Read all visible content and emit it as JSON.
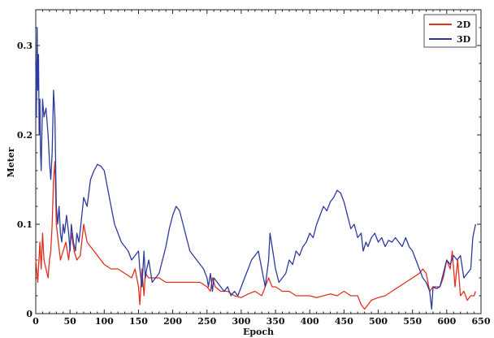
{
  "chart_data": {
    "type": "line",
    "title": "",
    "xlabel": "Epoch",
    "ylabel": "Meter",
    "xlim": [
      0,
      650
    ],
    "ylim": [
      0,
      0.34
    ],
    "x_ticks": [
      0,
      50,
      100,
      150,
      200,
      250,
      300,
      350,
      400,
      450,
      500,
      550,
      600,
      650
    ],
    "y_ticks": [
      0,
      0.1,
      0.2,
      0.3
    ],
    "x_tick_labels": [
      "0",
      "50",
      "100",
      "150",
      "200",
      "250",
      "300",
      "350",
      "400",
      "450",
      "500",
      "550",
      "600",
      "650"
    ],
    "y_tick_labels": [
      "0",
      "0.1",
      "0.2",
      "0.3"
    ],
    "grid": false,
    "legend_position": "top-right",
    "series": [
      {
        "name": "2D",
        "color": "#e0301e",
        "x": [
          0,
          3,
          6,
          8,
          10,
          12,
          15,
          18,
          20,
          22,
          24,
          26,
          28,
          30,
          33,
          36,
          40,
          44,
          48,
          52,
          56,
          60,
          65,
          70,
          75,
          80,
          85,
          90,
          95,
          100,
          110,
          120,
          130,
          140,
          145,
          150,
          152,
          155,
          158,
          160,
          165,
          170,
          180,
          190,
          200,
          210,
          220,
          230,
          240,
          250,
          255,
          258,
          262,
          270,
          280,
          290,
          300,
          310,
          320,
          330,
          340,
          345,
          350,
          360,
          370,
          380,
          390,
          400,
          410,
          420,
          430,
          440,
          450,
          460,
          470,
          475,
          480,
          490,
          500,
          510,
          520,
          530,
          540,
          550,
          560,
          565,
          570,
          575,
          580,
          585,
          590,
          595,
          600,
          605,
          608,
          612,
          616,
          620,
          625,
          630,
          635,
          640,
          642
        ],
        "values": [
          0.06,
          0.035,
          0.08,
          0.05,
          0.09,
          0.06,
          0.05,
          0.04,
          0.06,
          0.07,
          0.1,
          0.15,
          0.17,
          0.1,
          0.08,
          0.06,
          0.07,
          0.08,
          0.06,
          0.09,
          0.07,
          0.06,
          0.065,
          0.1,
          0.08,
          0.075,
          0.07,
          0.065,
          0.06,
          0.055,
          0.05,
          0.05,
          0.045,
          0.04,
          0.05,
          0.03,
          0.01,
          0.05,
          0.02,
          0.045,
          0.04,
          0.04,
          0.04,
          0.035,
          0.035,
          0.035,
          0.035,
          0.035,
          0.035,
          0.03,
          0.025,
          0.04,
          0.03,
          0.025,
          0.025,
          0.02,
          0.018,
          0.022,
          0.025,
          0.02,
          0.04,
          0.03,
          0.03,
          0.025,
          0.025,
          0.02,
          0.02,
          0.02,
          0.018,
          0.02,
          0.022,
          0.02,
          0.025,
          0.02,
          0.02,
          0.01,
          0.005,
          0.015,
          0.018,
          0.02,
          0.025,
          0.03,
          0.035,
          0.04,
          0.045,
          0.05,
          0.045,
          0.025,
          0.03,
          0.03,
          0.03,
          0.04,
          0.06,
          0.05,
          0.07,
          0.03,
          0.06,
          0.02,
          0.025,
          0.015,
          0.02,
          0.02,
          0.025
        ]
      },
      {
        "name": "3D",
        "color": "#2e3a9e",
        "x": [
          0,
          1,
          2,
          3,
          4,
          5,
          6,
          7,
          8,
          10,
          12,
          15,
          18,
          20,
          22,
          24,
          26,
          28,
          30,
          32,
          34,
          36,
          38,
          40,
          42,
          45,
          48,
          50,
          52,
          55,
          58,
          60,
          63,
          66,
          70,
          75,
          80,
          85,
          90,
          95,
          100,
          105,
          110,
          115,
          120,
          125,
          130,
          135,
          140,
          145,
          150,
          152,
          155,
          158,
          160,
          162,
          165,
          170,
          175,
          180,
          185,
          190,
          195,
          200,
          205,
          210,
          215,
          220,
          225,
          230,
          235,
          240,
          245,
          250,
          252,
          255,
          258,
          260,
          265,
          270,
          275,
          280,
          285,
          290,
          295,
          300,
          305,
          310,
          315,
          320,
          325,
          330,
          335,
          340,
          342,
          345,
          350,
          355,
          360,
          365,
          370,
          375,
          380,
          385,
          390,
          395,
          400,
          405,
          410,
          415,
          420,
          425,
          430,
          435,
          440,
          445,
          450,
          455,
          460,
          465,
          470,
          475,
          478,
          482,
          485,
          490,
          495,
          500,
          505,
          510,
          515,
          520,
          525,
          530,
          535,
          540,
          545,
          550,
          555,
          560,
          565,
          570,
          575,
          578,
          580,
          585,
          590,
          595,
          600,
          605,
          610,
          615,
          620,
          625,
          630,
          635,
          638,
          642
        ],
        "values": [
          0.28,
          0.22,
          0.32,
          0.25,
          0.29,
          0.2,
          0.24,
          0.18,
          0.16,
          0.24,
          0.22,
          0.23,
          0.2,
          0.17,
          0.15,
          0.18,
          0.25,
          0.22,
          0.12,
          0.1,
          0.12,
          0.09,
          0.08,
          0.1,
          0.09,
          0.11,
          0.09,
          0.07,
          0.1,
          0.08,
          0.07,
          0.09,
          0.08,
          0.1,
          0.13,
          0.12,
          0.15,
          0.16,
          0.167,
          0.165,
          0.16,
          0.14,
          0.12,
          0.1,
          0.09,
          0.08,
          0.075,
          0.07,
          0.06,
          0.065,
          0.07,
          0.05,
          0.03,
          0.07,
          0.04,
          0.05,
          0.06,
          0.035,
          0.04,
          0.045,
          0.06,
          0.075,
          0.095,
          0.11,
          0.12,
          0.115,
          0.1,
          0.085,
          0.07,
          0.065,
          0.06,
          0.055,
          0.05,
          0.04,
          0.03,
          0.045,
          0.025,
          0.04,
          0.035,
          0.03,
          0.025,
          0.03,
          0.02,
          0.025,
          0.02,
          0.03,
          0.04,
          0.05,
          0.06,
          0.065,
          0.07,
          0.05,
          0.03,
          0.06,
          0.09,
          0.075,
          0.05,
          0.035,
          0.04,
          0.045,
          0.06,
          0.055,
          0.07,
          0.065,
          0.075,
          0.08,
          0.09,
          0.085,
          0.1,
          0.11,
          0.12,
          0.115,
          0.125,
          0.13,
          0.138,
          0.135,
          0.125,
          0.11,
          0.095,
          0.1,
          0.085,
          0.09,
          0.07,
          0.08,
          0.075,
          0.085,
          0.09,
          0.08,
          0.085,
          0.075,
          0.082,
          0.08,
          0.085,
          0.08,
          0.075,
          0.085,
          0.075,
          0.07,
          0.06,
          0.05,
          0.04,
          0.035,
          0.025,
          0.005,
          0.03,
          0.028,
          0.03,
          0.045,
          0.06,
          0.055,
          0.065,
          0.06,
          0.065,
          0.04,
          0.045,
          0.05,
          0.085,
          0.1
        ]
      }
    ]
  }
}
